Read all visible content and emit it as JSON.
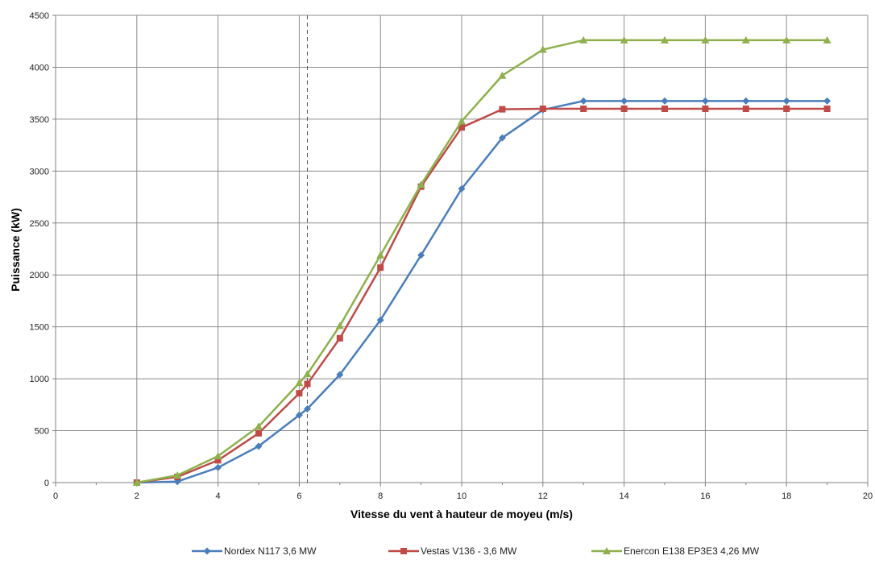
{
  "chart_data": {
    "type": "line",
    "title": "",
    "xlabel": "Vitesse du vent à hauteur de moyeu (m/s)",
    "ylabel": "Puissance (kW)",
    "xlim": [
      0,
      20
    ],
    "ylim": [
      0,
      4500
    ],
    "x_ticks": [
      0,
      2,
      4,
      6,
      8,
      10,
      12,
      14,
      16,
      18,
      20
    ],
    "y_ticks": [
      0,
      500,
      1000,
      1500,
      2000,
      2500,
      3000,
      3500,
      4000,
      4500
    ],
    "grid": true,
    "legend_position": "bottom",
    "reference_line": {
      "x": 6.2,
      "style": "dashed"
    },
    "series": [
      {
        "name": "Nordex N117 3,6 MW",
        "color": "#4a7ebb",
        "marker": "diamond",
        "points": [
          [
            2,
            0
          ],
          [
            3,
            10
          ],
          [
            4,
            145
          ],
          [
            5,
            350
          ],
          [
            6,
            650
          ],
          [
            6.2,
            710
          ],
          [
            7,
            1040
          ],
          [
            8,
            1565
          ],
          [
            9,
            2190
          ],
          [
            10,
            2830
          ],
          [
            11,
            3320
          ],
          [
            12,
            3590
          ],
          [
            13,
            3675
          ],
          [
            14,
            3675
          ],
          [
            15,
            3675
          ],
          [
            16,
            3675
          ],
          [
            17,
            3675
          ],
          [
            18,
            3675
          ],
          [
            19,
            3675
          ]
        ]
      },
      {
        "name": "Vestas V136  - 3,6 MW",
        "color": "#be4b48",
        "marker": "square",
        "points": [
          [
            2,
            0
          ],
          [
            3,
            55
          ],
          [
            4,
            215
          ],
          [
            5,
            475
          ],
          [
            6,
            860
          ],
          [
            6.2,
            950
          ],
          [
            7,
            1390
          ],
          [
            8,
            2070
          ],
          [
            9,
            2850
          ],
          [
            10,
            3420
          ],
          [
            11,
            3595
          ],
          [
            12,
            3600
          ],
          [
            13,
            3600
          ],
          [
            14,
            3600
          ],
          [
            15,
            3600
          ],
          [
            16,
            3600
          ],
          [
            17,
            3600
          ],
          [
            18,
            3600
          ],
          [
            19,
            3600
          ]
        ]
      },
      {
        "name": "Enercon E138 EP3E3 4,26 MW",
        "color": "#8fb04d",
        "marker": "triangle",
        "points": [
          [
            2,
            0
          ],
          [
            3,
            70
          ],
          [
            4,
            255
          ],
          [
            5,
            540
          ],
          [
            6,
            960
          ],
          [
            6.2,
            1045
          ],
          [
            7,
            1510
          ],
          [
            8,
            2190
          ],
          [
            9,
            2870
          ],
          [
            10,
            3480
          ],
          [
            11,
            3920
          ],
          [
            12,
            4170
          ],
          [
            13,
            4260
          ],
          [
            14,
            4260
          ],
          [
            15,
            4260
          ],
          [
            16,
            4260
          ],
          [
            17,
            4260
          ],
          [
            18,
            4260
          ],
          [
            19,
            4260
          ]
        ]
      }
    ]
  }
}
